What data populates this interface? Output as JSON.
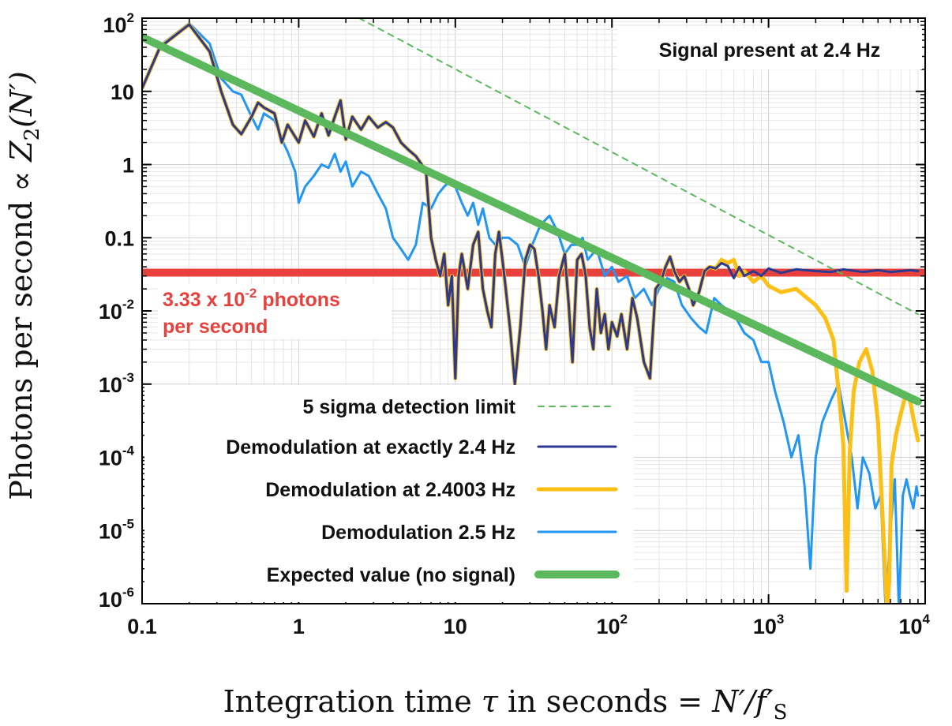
{
  "chart_data": {
    "type": "line",
    "title": "",
    "xlabel_main": "Integration time",
    "xlabel_symbol": "τ",
    "xlabel_rest": "in seconds",
    "xlabel_eq": "= N′/f′",
    "xlabel_sub": "S",
    "ylabel_main": "Photons per second",
    "ylabel_prop": "∝",
    "ylabel_symbol": "Z",
    "ylabel_sub": "2",
    "ylabel_arg": "(N′)",
    "xscale": "log",
    "yscale": "log",
    "xlim": [
      0.1,
      10000
    ],
    "ylim": [
      1e-06,
      100
    ],
    "x_ticks": [
      {
        "value": 0.1,
        "base": "0.1",
        "exp": ""
      },
      {
        "value": 1,
        "base": "1",
        "exp": ""
      },
      {
        "value": 10,
        "base": "10",
        "exp": ""
      },
      {
        "value": 100,
        "base": "10",
        "exp": "2"
      },
      {
        "value": 1000,
        "base": "10",
        "exp": "3"
      },
      {
        "value": 10000,
        "base": "10",
        "exp": "4"
      }
    ],
    "y_ticks": [
      {
        "value": 100,
        "base": "10",
        "exp": "2"
      },
      {
        "value": 10,
        "base": "10",
        "exp": ""
      },
      {
        "value": 1,
        "base": "1",
        "exp": ""
      },
      {
        "value": 0.1,
        "base": "0.1",
        "exp": ""
      },
      {
        "value": 0.01,
        "base": "10",
        "exp": "-2"
      },
      {
        "value": 0.001,
        "base": "10",
        "exp": "-3"
      },
      {
        "value": 0.0001,
        "base": "10",
        "exp": "-4"
      },
      {
        "value": 1e-05,
        "base": "10",
        "exp": "-5"
      },
      {
        "value": 1e-06,
        "base": "10",
        "exp": "-6"
      }
    ],
    "grid": true,
    "legend_position": "bottom-left",
    "annotation_box": "Signal present at 2.4 Hz",
    "red_line": {
      "value": 0.0333,
      "color": "#e8413c",
      "label_line1_pre": "3.33 x 10",
      "label_line1_exp": "-2",
      "label_line1_post": " photons",
      "label_line2": "per second"
    },
    "series": [
      {
        "name": "5 sigma detection limit",
        "color": "#5cb85c",
        "style": "dashed",
        "width": 2,
        "x": [
          0.5,
          9000
        ],
        "y": [
          600,
          0.009
        ]
      },
      {
        "name": "Demodulation at exactly 2.4 Hz",
        "color": "#2b3990",
        "style": "solid",
        "width": 3,
        "x": [
          0.1,
          0.13,
          0.2,
          0.27,
          0.32,
          0.38,
          0.43,
          0.5,
          0.55,
          0.6,
          0.7,
          0.78,
          0.85,
          1.0,
          1.1,
          1.25,
          1.4,
          1.55,
          1.7,
          1.85,
          2.0,
          2.2,
          2.5,
          2.8,
          3.2,
          3.6,
          4.0,
          4.5,
          5.0,
          5.6,
          6.1,
          6.5,
          7.0,
          7.5,
          8.0,
          8.5,
          9.0,
          9.5,
          10.0,
          10.5,
          11.0,
          12.0,
          13.0,
          14.0,
          15.0,
          16.0,
          17.0,
          18.0,
          19.0,
          20.0,
          21.0,
          22.5,
          24.0,
          26.0,
          28.0,
          30.0,
          32.0,
          34.0,
          36.0,
          38.0,
          40.0,
          43.0,
          46.0,
          50.0,
          53.0,
          56.0,
          60.0,
          64.0,
          68.0,
          72.0,
          76.0,
          80.0,
          85.0,
          90.0,
          95.0,
          100.0,
          108.0,
          115.0,
          125.0,
          135.0,
          145.0,
          160.0,
          175.0,
          190.0,
          205.0,
          220.0,
          235.0,
          250.0,
          270.0,
          290.0,
          310.0,
          330.0,
          360.0,
          390.0,
          420.0,
          460.0,
          500.0,
          550.0,
          600.0,
          650.0,
          700.0,
          800.0,
          900.0,
          1000.0,
          1200.0,
          1500.0,
          2000.0,
          2500.0,
          3000.0,
          4000.0,
          5000.0,
          6000.0,
          7000.0,
          8000.0,
          9000.0
        ],
        "y": [
          11,
          40,
          82,
          35,
          10,
          3.5,
          2.6,
          4.5,
          7.0,
          6.0,
          5.0,
          2.0,
          3.5,
          2.0,
          4.0,
          2.4,
          5.0,
          2.5,
          4.5,
          7.5,
          2.2,
          4.5,
          3.0,
          4.5,
          3.2,
          3.8,
          3.2,
          2.0,
          1.6,
          1.3,
          1.0,
          0.8,
          0.1,
          0.05,
          0.03,
          0.06,
          0.012,
          0.03,
          0.0012,
          0.03,
          0.06,
          0.02,
          0.08,
          0.12,
          0.02,
          0.01,
          0.006,
          0.06,
          0.12,
          0.05,
          0.02,
          0.005,
          0.001,
          0.006,
          0.05,
          0.08,
          0.07,
          0.03,
          0.01,
          0.003,
          0.012,
          0.006,
          0.03,
          0.06,
          0.012,
          0.002,
          0.05,
          0.06,
          0.03,
          0.006,
          0.003,
          0.02,
          0.005,
          0.009,
          0.003,
          0.007,
          0.0045,
          0.009,
          0.003,
          0.015,
          0.008,
          0.002,
          0.0012,
          0.02,
          0.025,
          0.04,
          0.055,
          0.035,
          0.025,
          0.03,
          0.02,
          0.012,
          0.018,
          0.035,
          0.04,
          0.038,
          0.045,
          0.041,
          0.028,
          0.04,
          0.03,
          0.035,
          0.03,
          0.038,
          0.033,
          0.037,
          0.035,
          0.034,
          0.037,
          0.034,
          0.036,
          0.034,
          0.035,
          0.036,
          0.035
        ]
      },
      {
        "name": "Demodulation at 2.4003 Hz",
        "color": "#fbbf16",
        "style": "solid",
        "width": 5,
        "x": [
          0.1,
          0.13,
          0.2,
          0.27,
          0.32,
          0.38,
          0.43,
          0.5,
          0.55,
          0.6,
          0.7,
          0.78,
          0.85,
          1.0,
          1.1,
          1.25,
          1.4,
          1.55,
          1.7,
          1.85,
          2.0,
          2.2,
          2.5,
          2.8,
          3.2,
          3.6,
          4.0,
          4.5,
          5.0,
          5.6,
          6.1,
          6.5,
          7.0,
          7.5,
          8.0,
          8.5,
          9.0,
          9.5,
          10.0,
          10.5,
          11.0,
          12.0,
          13.0,
          14.0,
          15.0,
          16.0,
          17.0,
          18.0,
          19.0,
          20.0,
          21.0,
          22.5,
          24.0,
          26.0,
          28.0,
          30.0,
          32.0,
          34.0,
          36.0,
          38.0,
          40.0,
          43.0,
          46.0,
          50.0,
          53.0,
          56.0,
          60.0,
          64.0,
          68.0,
          72.0,
          76.0,
          80.0,
          85.0,
          90.0,
          95.0,
          100.0,
          108.0,
          115.0,
          125.0,
          135.0,
          145.0,
          160.0,
          175.0,
          190.0,
          205.0,
          220.0,
          235.0,
          250.0,
          270.0,
          290.0,
          310.0,
          330.0,
          360.0,
          390.0,
          420.0,
          460.0,
          500.0,
          550.0,
          600.0,
          650.0,
          700.0,
          800.0,
          900.0,
          1000.0,
          1200.0,
          1500.0,
          2000.0,
          2300.0,
          2600.0,
          2800.0,
          3000.0,
          3150.0,
          3300.0,
          3500.0,
          3800.0,
          4200.0,
          4600.0,
          5000.0,
          5400.0,
          5700.0,
          5900.0,
          6100.0,
          6500.0,
          7000.0,
          7500.0,
          8000.0,
          8500.0,
          9000.0
        ],
        "y": [
          11,
          40,
          82,
          35,
          10,
          3.5,
          2.6,
          4.5,
          7.0,
          6.0,
          5.0,
          2.0,
          3.5,
          2.0,
          4.0,
          2.4,
          5.0,
          2.5,
          4.5,
          7.5,
          2.2,
          4.5,
          3.0,
          4.5,
          3.2,
          3.8,
          3.2,
          2.0,
          1.6,
          1.3,
          1.0,
          0.8,
          0.1,
          0.05,
          0.03,
          0.06,
          0.012,
          0.03,
          0.0012,
          0.03,
          0.06,
          0.02,
          0.08,
          0.12,
          0.02,
          0.01,
          0.006,
          0.06,
          0.12,
          0.05,
          0.02,
          0.005,
          0.001,
          0.006,
          0.05,
          0.08,
          0.07,
          0.03,
          0.01,
          0.003,
          0.012,
          0.006,
          0.03,
          0.06,
          0.012,
          0.002,
          0.05,
          0.06,
          0.03,
          0.006,
          0.003,
          0.02,
          0.005,
          0.009,
          0.003,
          0.007,
          0.0045,
          0.009,
          0.003,
          0.015,
          0.008,
          0.002,
          0.0012,
          0.02,
          0.025,
          0.04,
          0.055,
          0.035,
          0.025,
          0.03,
          0.02,
          0.012,
          0.018,
          0.035,
          0.04,
          0.038,
          0.05,
          0.045,
          0.05,
          0.03,
          0.035,
          0.025,
          0.03,
          0.022,
          0.018,
          0.02,
          0.012,
          0.008,
          0.004,
          0.0008,
          0.00015,
          1.5e-06,
          0.00012,
          0.0008,
          0.002,
          0.003,
          0.0015,
          0.0003,
          1e-05,
          8e-07,
          2e-06,
          8e-05,
          0.0002,
          0.0004,
          0.0007,
          0.0006,
          0.0003,
          0.00017
        ]
      },
      {
        "name": "Demodulation 2.5 Hz",
        "color": "#2196f3",
        "style": "solid",
        "width": 3,
        "x": [
          0.1,
          0.13,
          0.2,
          0.27,
          0.32,
          0.38,
          0.43,
          0.5,
          0.55,
          0.6,
          0.7,
          0.78,
          0.85,
          0.95,
          1.0,
          1.1,
          1.25,
          1.4,
          1.55,
          1.7,
          1.85,
          2.0,
          2.2,
          2.5,
          2.8,
          3.2,
          3.6,
          4.0,
          4.5,
          5.0,
          5.6,
          6.2,
          7.0,
          7.8,
          8.5,
          9.3,
          10.0,
          11.0,
          12.0,
          13.0,
          14.0,
          15.0,
          16.5,
          18.0,
          20.0,
          22.0,
          25.0,
          28.0,
          31.0,
          35.0,
          40.0,
          45.0,
          50.0,
          55.0,
          60.0,
          65.0,
          70.0,
          80.0,
          90.0,
          100.0,
          110.0,
          125.0,
          140.0,
          160.0,
          180.0,
          200.0,
          225.0,
          250.0,
          280.0,
          320.0,
          360.0,
          400.0,
          450.0,
          500.0,
          560.0,
          620.0,
          700.0,
          800.0,
          900.0,
          1000.0,
          1100.0,
          1250.0,
          1400.0,
          1550.0,
          1700.0,
          1850.0,
          2000.0,
          2200.0,
          2500.0,
          2800.0,
          3100.0,
          3400.0,
          3700.0,
          4000.0,
          4400.0,
          4800.0,
          5200.0,
          5600.0,
          6000.0,
          6400.0,
          6800.0,
          7200.0,
          7600.0,
          8000.0,
          8400.0,
          8800.0,
          9000.0
        ],
        "y": [
          11,
          42,
          85,
          45,
          15,
          10,
          9,
          4.5,
          3.0,
          5.0,
          4.0,
          2.2,
          1.5,
          0.8,
          0.3,
          0.5,
          0.7,
          1.0,
          0.9,
          1.4,
          0.8,
          1.1,
          0.5,
          0.8,
          0.7,
          0.4,
          0.25,
          0.1,
          0.07,
          0.05,
          0.08,
          0.3,
          0.25,
          0.4,
          0.5,
          0.6,
          0.5,
          0.3,
          0.2,
          0.3,
          0.15,
          0.25,
          0.1,
          0.08,
          0.1,
          0.1,
          0.08,
          0.04,
          0.08,
          0.15,
          0.2,
          0.12,
          0.06,
          0.08,
          0.08,
          0.1,
          0.05,
          0.07,
          0.03,
          0.04,
          0.025,
          0.03,
          0.015,
          0.02,
          0.012,
          0.02,
          0.028,
          0.025,
          0.012,
          0.008,
          0.006,
          0.005,
          0.015,
          0.012,
          0.01,
          0.008,
          0.005,
          0.004,
          0.002,
          0.002,
          0.0008,
          0.0003,
          0.0001,
          0.0002,
          4e-05,
          3e-06,
          0.0001,
          0.0003,
          0.0006,
          0.001,
          0.0003,
          0.0001,
          2e-05,
          0.0001,
          6e-05,
          2e-05,
          3e-05,
          8e-07,
          1e-05,
          5e-05,
          8e-07,
          3e-05,
          5e-05,
          3e-05,
          2e-05,
          4e-05,
          3e-05
        ]
      },
      {
        "name": "Expected value (no signal)",
        "color": "#5cb85c",
        "style": "solid",
        "width": 10,
        "x": [
          0.1,
          9000
        ],
        "y": [
          55,
          0.00058
        ]
      }
    ]
  }
}
